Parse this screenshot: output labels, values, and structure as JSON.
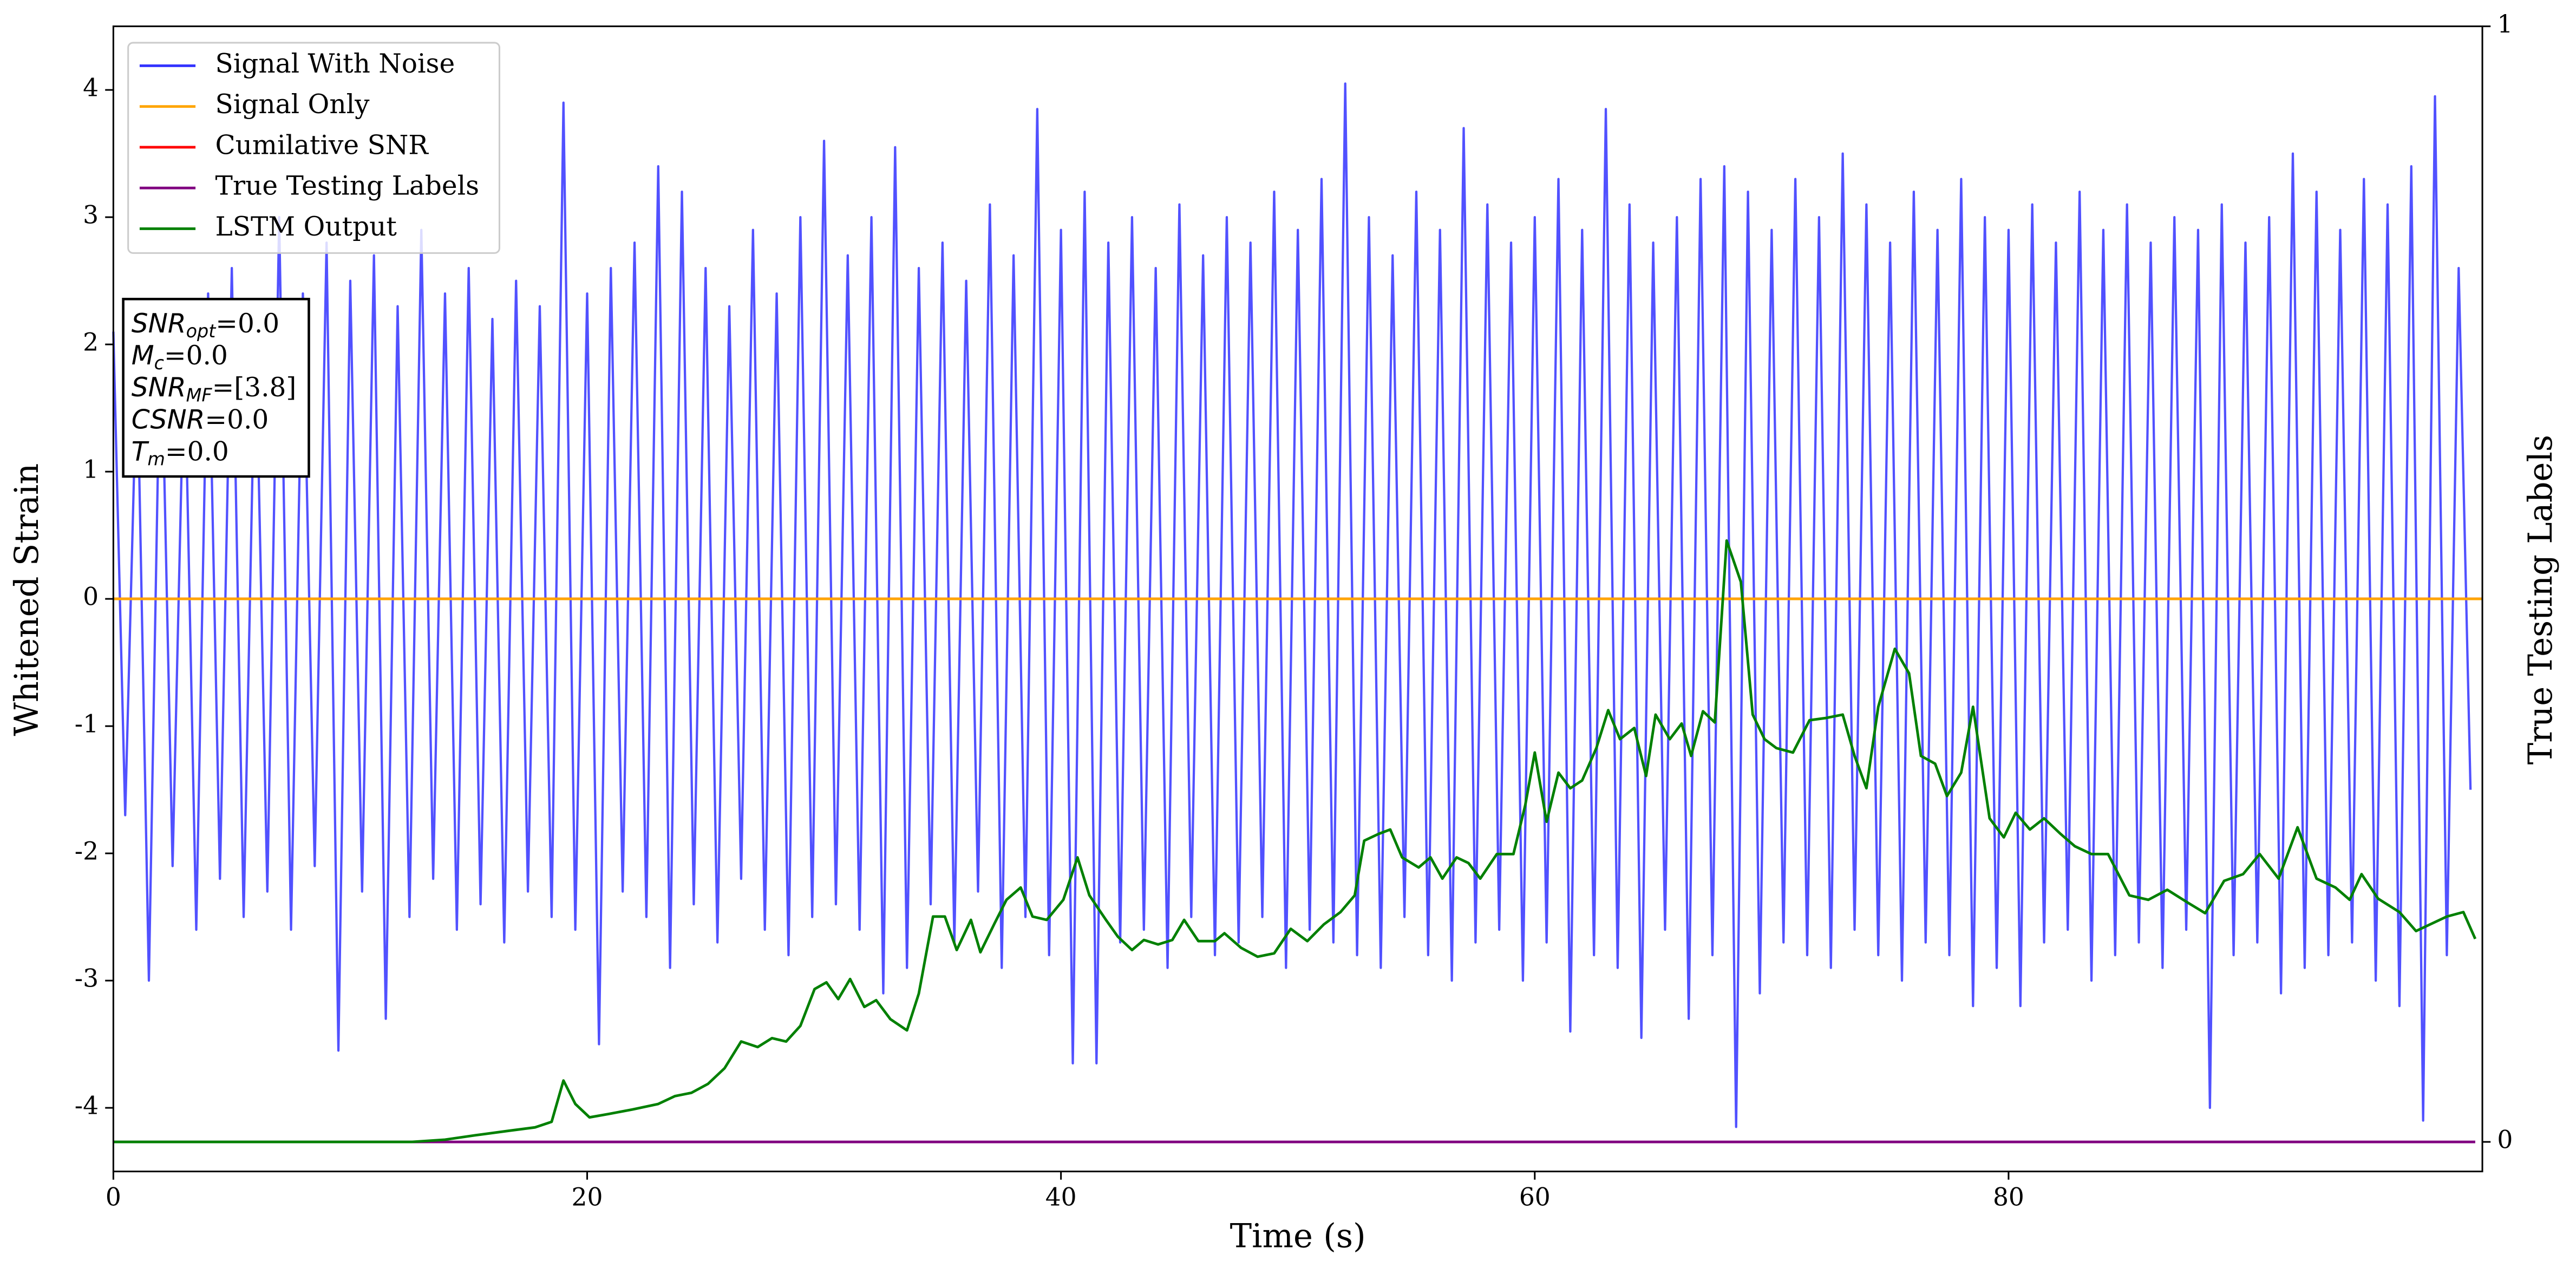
{
  "chart_data": {
    "type": "line",
    "xlabel": "Time (s)",
    "ylabel": "Whitened Strain",
    "y2label": "True Testing Labels",
    "xlim": [
      0,
      100
    ],
    "ylim": [
      -4.5,
      4.5
    ],
    "y2lim": [
      -0.0265,
      1
    ],
    "xticks": [
      0,
      20,
      40,
      60,
      80
    ],
    "yticks": [
      -4,
      -3,
      -2,
      -1,
      0,
      1,
      2,
      3,
      4
    ],
    "y2ticks": [
      0,
      1
    ],
    "legend": "upper left",
    "annotation_lines": [
      {
        "symbol": "SNR",
        "subscript": "opt",
        "text": "=0.0"
      },
      {
        "symbol": "M",
        "subscript": "c",
        "text": "=0.0"
      },
      {
        "symbol": "SNR",
        "subscript": "MF",
        "text": "=[3.8]"
      },
      {
        "symbol": "CSNR",
        "text": "=0.0"
      },
      {
        "symbol": "T",
        "subscript": "m",
        "text": "=0.0"
      }
    ],
    "series": [
      {
        "name": "Signal With Noise",
        "color": "#3333ff",
        "x": [
          0,
          0.5,
          1,
          1.5,
          2,
          2.5,
          3,
          3.5,
          4,
          4.5,
          5,
          5.5,
          6,
          6.5,
          7,
          7.5,
          8,
          8.5,
          9,
          9.5,
          10,
          10.5,
          11,
          11.5,
          12,
          12.5,
          13,
          13.5,
          14,
          14.5,
          15,
          15.5,
          16,
          16.5,
          17,
          17.5,
          18,
          18.5,
          19,
          19.5,
          20,
          20.5,
          21,
          21.5,
          22,
          22.5,
          23,
          23.5,
          24,
          24.5,
          25,
          25.5,
          26,
          26.5,
          27,
          27.5,
          28,
          28.5,
          29,
          29.5,
          30,
          30.5,
          31,
          31.5,
          32,
          32.5,
          33,
          33.5,
          34,
          34.5,
          35,
          35.5,
          36,
          36.5,
          37,
          37.5,
          38,
          38.5,
          39,
          39.5,
          40,
          40.5,
          41,
          41.5,
          42,
          42.5,
          43,
          43.5,
          44,
          44.5,
          45,
          45.5,
          46,
          46.5,
          47,
          47.5,
          48,
          48.5,
          49,
          49.5,
          50,
          50.5,
          51,
          51.5,
          52,
          52.5,
          53,
          53.5,
          54,
          54.5,
          55,
          55.5,
          56,
          56.5,
          57,
          57.5,
          58,
          58.5,
          59,
          59.5,
          60,
          60.5,
          61,
          61.5,
          62,
          62.5,
          63,
          63.5,
          64,
          64.5,
          65,
          65.5,
          66,
          66.5,
          67,
          67.5,
          68,
          68.5,
          69,
          69.5,
          70,
          70.5,
          71,
          71.5,
          72,
          72.5,
          73,
          73.5,
          74,
          74.5,
          75,
          75.5,
          76,
          76.5,
          77,
          77.5,
          78,
          78.5,
          79,
          79.5,
          80,
          80.5,
          81,
          81.5,
          82,
          82.5,
          83,
          83.5,
          84,
          84.5,
          85,
          85.5,
          86,
          86.5,
          87,
          87.5,
          88,
          88.5,
          89,
          89.5,
          90,
          90.5,
          91,
          91.5,
          92,
          92.5,
          93,
          93.5,
          94,
          94.5,
          95,
          95.5,
          96,
          96.5,
          97,
          97.5,
          98,
          98.5,
          99,
          99.5
        ],
        "values": [
          2.1,
          -1.7,
          1.9,
          -3.0,
          2.3,
          -2.1,
          2.0,
          -2.6,
          2.4,
          -2.2,
          2.6,
          -2.5,
          2.2,
          -2.3,
          3.0,
          -2.6,
          2.4,
          -2.1,
          2.8,
          -3.55,
          2.5,
          -2.3,
          2.7,
          -3.3,
          2.3,
          -2.5,
          2.9,
          -2.2,
          2.4,
          -2.6,
          2.6,
          -2.4,
          2.2,
          -2.7,
          2.5,
          -2.3,
          2.3,
          -2.5,
          3.9,
          -2.6,
          2.4,
          -3.5,
          2.6,
          -2.3,
          2.8,
          -2.5,
          3.4,
          -2.9,
          3.2,
          -2.4,
          2.6,
          -2.7,
          2.3,
          -2.2,
          2.9,
          -2.6,
          2.4,
          -2.8,
          3.0,
          -2.5,
          3.6,
          -2.4,
          2.7,
          -2.6,
          3.0,
          -3.1,
          3.55,
          -2.9,
          2.6,
          -2.4,
          2.8,
          -2.7,
          2.5,
          -2.3,
          3.1,
          -2.9,
          2.7,
          -2.5,
          3.85,
          -2.8,
          2.9,
          -3.65,
          3.2,
          -3.65,
          2.8,
          -2.7,
          3.0,
          -2.6,
          2.6,
          -2.9,
          3.1,
          -2.5,
          2.7,
          -2.8,
          3.0,
          -2.7,
          2.8,
          -2.5,
          3.2,
          -2.9,
          2.9,
          -2.6,
          3.3,
          -2.7,
          4.05,
          -2.8,
          3.0,
          -2.9,
          2.7,
          -2.5,
          3.2,
          -2.8,
          2.9,
          -3.0,
          3.7,
          -2.7,
          3.1,
          -2.6,
          2.8,
          -3.0,
          3.0,
          -2.7,
          3.3,
          -3.4,
          2.9,
          -2.8,
          3.85,
          -2.9,
          3.1,
          -3.45,
          2.8,
          -2.6,
          3.0,
          -3.3,
          3.3,
          -2.8,
          3.4,
          -4.15,
          3.2,
          -3.1,
          2.9,
          -2.7,
          3.3,
          -2.8,
          3.0,
          -2.9,
          3.5,
          -2.6,
          3.1,
          -2.8,
          2.8,
          -3.0,
          3.2,
          -2.7,
          2.9,
          -2.8,
          3.3,
          -3.2,
          3.0,
          -2.9,
          2.9,
          -3.2,
          3.1,
          -2.7,
          2.8,
          -2.6,
          3.2,
          -3.0,
          2.9,
          -2.8,
          3.1,
          -2.7,
          2.8,
          -2.9,
          3.0,
          -2.6,
          2.9,
          -4.0,
          3.1,
          -2.8,
          2.8,
          -2.7,
          3.0,
          -3.1,
          3.5,
          -2.9,
          3.2,
          -2.8,
          2.9,
          -2.7,
          3.3,
          -3.0,
          3.1,
          -3.2,
          3.4,
          -4.1,
          3.95,
          -2.8,
          2.6,
          -1.5
        ]
      },
      {
        "name": "Signal Only",
        "color": "orange",
        "x": [
          0,
          100
        ],
        "values": [
          0,
          0
        ]
      },
      {
        "name": "Cumilative SNR",
        "color": "red",
        "x": [
          0,
          100
        ],
        "values": [
          0,
          0
        ]
      },
      {
        "name": "True Testing Labels",
        "color": "purple",
        "axis": "y2",
        "x": [
          0,
          99.7
        ],
        "values": [
          0,
          0
        ]
      },
      {
        "name": "LSTM Output",
        "color": "green",
        "axis": "y2",
        "x": [
          0,
          12.6,
          14.0,
          15.3,
          16.7,
          17.8,
          18.5,
          19.0,
          19.5,
          20.1,
          20.9,
          21.9,
          23.0,
          23.7,
          24.4,
          25.1,
          25.8,
          26.5,
          27.2,
          27.8,
          28.4,
          29.0,
          29.6,
          30.1,
          30.6,
          31.1,
          31.7,
          32.2,
          32.8,
          33.5,
          34.0,
          34.6,
          35.1,
          35.6,
          36.2,
          36.6,
          37.2,
          37.7,
          38.3,
          38.8,
          39.4,
          40.1,
          40.7,
          41.2,
          41.9,
          42.4,
          43.0,
          43.5,
          44.1,
          44.7,
          45.2,
          45.8,
          46.5,
          46.9,
          47.6,
          48.3,
          49.0,
          49.7,
          50.4,
          51.1,
          51.8,
          52.4,
          52.8,
          53.4,
          53.9,
          54.4,
          55.1,
          55.6,
          56.1,
          56.7,
          57.2,
          57.7,
          58.4,
          59.1,
          59.6,
          60.0,
          60.5,
          61.0,
          61.5,
          62.0,
          62.6,
          63.1,
          63.6,
          64.2,
          64.7,
          65.1,
          65.7,
          66.2,
          66.6,
          67.1,
          67.6,
          68.1,
          68.7,
          69.2,
          69.7,
          70.2,
          70.9,
          71.6,
          72.3,
          73.0,
          73.5,
          74.0,
          74.5,
          75.2,
          75.8,
          76.3,
          76.9,
          77.4,
          78.0,
          78.5,
          79.2,
          79.8,
          80.3,
          80.9,
          81.5,
          82.2,
          82.8,
          83.5,
          84.2,
          85.1,
          85.9,
          86.7,
          87.6,
          88.3,
          89.1,
          89.9,
          90.6,
          91.4,
          92.2,
          93.0,
          93.8,
          94.4,
          94.9,
          95.6,
          96.5,
          97.2,
          97.8,
          98.5,
          99.2,
          99.7
        ],
        "values": [
          0,
          0,
          0.002,
          0.006,
          0.01,
          0.013,
          0.018,
          0.055,
          0.034,
          0.022,
          0.025,
          0.029,
          0.034,
          0.041,
          0.044,
          0.052,
          0.066,
          0.09,
          0.085,
          0.093,
          0.09,
          0.104,
          0.137,
          0.143,
          0.128,
          0.146,
          0.121,
          0.127,
          0.11,
          0.1,
          0.133,
          0.202,
          0.202,
          0.172,
          0.199,
          0.17,
          0.196,
          0.217,
          0.228,
          0.202,
          0.199,
          0.217,
          0.255,
          0.221,
          0.199,
          0.184,
          0.172,
          0.181,
          0.177,
          0.181,
          0.199,
          0.18,
          0.18,
          0.187,
          0.174,
          0.166,
          0.169,
          0.191,
          0.18,
          0.195,
          0.206,
          0.221,
          0.27,
          0.276,
          0.28,
          0.255,
          0.246,
          0.255,
          0.236,
          0.255,
          0.25,
          0.236,
          0.258,
          0.258,
          0.302,
          0.349,
          0.287,
          0.331,
          0.317,
          0.324,
          0.353,
          0.387,
          0.361,
          0.371,
          0.328,
          0.383,
          0.361,
          0.375,
          0.346,
          0.386,
          0.376,
          0.539,
          0.502,
          0.383,
          0.361,
          0.353,
          0.349,
          0.378,
          0.38,
          0.383,
          0.346,
          0.317,
          0.39,
          0.442,
          0.42,
          0.346,
          0.339,
          0.31,
          0.331,
          0.39,
          0.29,
          0.273,
          0.295,
          0.28,
          0.29,
          0.276,
          0.265,
          0.258,
          0.258,
          0.221,
          0.217,
          0.226,
          0.214,
          0.205,
          0.234,
          0.24,
          0.258,
          0.236,
          0.282,
          0.236,
          0.228,
          0.217,
          0.24,
          0.218,
          0.206,
          0.189,
          0.195,
          0.202,
          0.206,
          0.182
        ]
      }
    ]
  }
}
